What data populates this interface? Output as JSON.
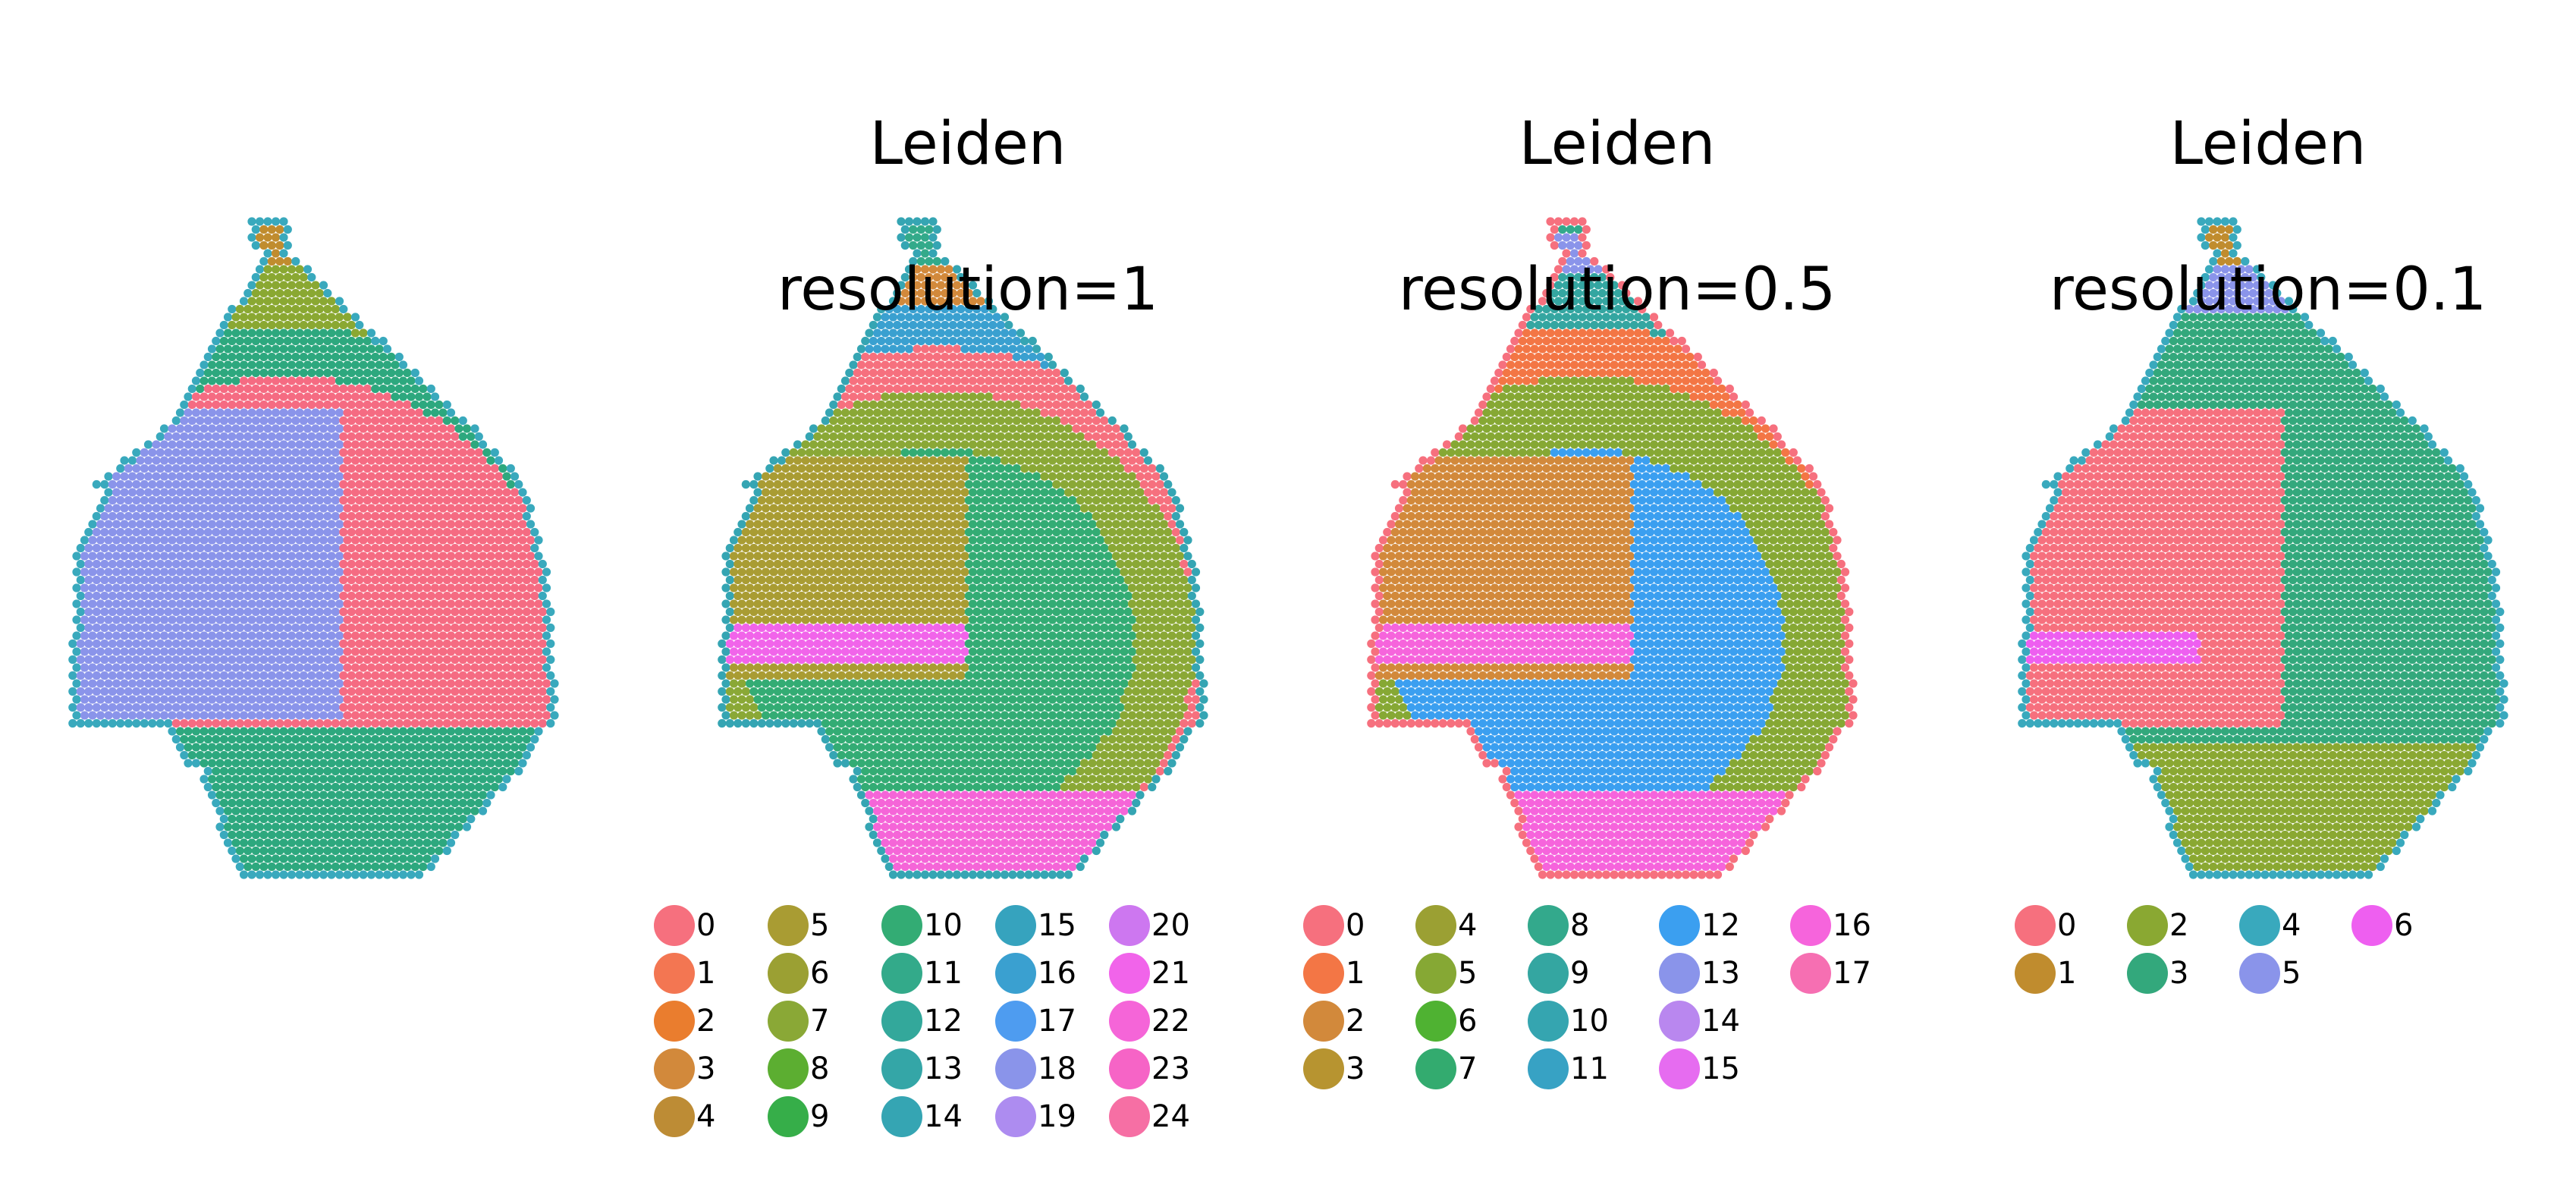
{
  "figure": {
    "panels": [
      {
        "id": "p0",
        "title_line1": "",
        "title_line2": "",
        "legend": []
      },
      {
        "id": "p1",
        "title_line1": "Leiden",
        "title_line2": "resolution=1",
        "legend": [
          "0",
          "1",
          "2",
          "3",
          "4",
          "5",
          "6",
          "7",
          "8",
          "9",
          "10",
          "11",
          "12",
          "13",
          "14",
          "15",
          "16",
          "17",
          "18",
          "19",
          "20",
          "21",
          "22",
          "23",
          "24"
        ]
      },
      {
        "id": "p2",
        "title_line1": "Leiden",
        "title_line2": "resolution=0.5",
        "legend": [
          "0",
          "1",
          "2",
          "3",
          "4",
          "5",
          "6",
          "7",
          "8",
          "9",
          "10",
          "11",
          "12",
          "13",
          "14",
          "15",
          "16",
          "17"
        ]
      },
      {
        "id": "p3",
        "title_line1": "Leiden",
        "title_line2": "resolution=0.1",
        "legend": [
          "0",
          "1",
          "2",
          "3",
          "4",
          "5",
          "6"
        ]
      }
    ]
  },
  "chart_data": [
    {
      "type": "scatter",
      "title": "",
      "subtitle": "",
      "series": [],
      "colors": {
        "background_cluster": "#8a94ea",
        "others": [
          "#c08c2e",
          "#ee5ff0",
          "#2da87e",
          "#f56b82",
          "#39a9bd",
          "#8aa832"
        ]
      }
    },
    {
      "type": "scatter",
      "title": "Leiden",
      "subtitle": "resolution=1",
      "categories": [
        "0",
        "1",
        "2",
        "3",
        "4",
        "5",
        "6",
        "7",
        "8",
        "9",
        "10",
        "11",
        "12",
        "13",
        "14",
        "15",
        "16",
        "17",
        "18",
        "19",
        "20",
        "21",
        "22",
        "23",
        "24"
      ],
      "colors": [
        "#f6707e",
        "#f37652",
        "#ea7d2e",
        "#d2893b",
        "#bd8c35",
        "#a99c33",
        "#9ba033",
        "#8aa836",
        "#5cae31",
        "#36ae49",
        "#33ac74",
        "#33aa8a",
        "#33a89b",
        "#34a6a7",
        "#35a5b3",
        "#36a3be",
        "#3aa0d0",
        "#4e9cf0",
        "#8a94ea",
        "#ad8cf0",
        "#cd77f0",
        "#f164ea",
        "#f565d8",
        "#f664c6",
        "#f66fa4"
      ]
    },
    {
      "type": "scatter",
      "title": "Leiden",
      "subtitle": "resolution=0.5",
      "categories": [
        "0",
        "1",
        "2",
        "3",
        "4",
        "5",
        "6",
        "7",
        "8",
        "9",
        "10",
        "11",
        "12",
        "13",
        "14",
        "15",
        "16",
        "17"
      ],
      "colors": [
        "#f6707e",
        "#f37645",
        "#d2893b",
        "#b79430",
        "#9ba033",
        "#86a834",
        "#4fb232",
        "#33ab6f",
        "#33a98c",
        "#34a6a1",
        "#35a5b0",
        "#37a2c4",
        "#3b9ff0",
        "#8a94ea",
        "#b987ef",
        "#e66cf0",
        "#f664dc",
        "#f66fb2"
      ]
    },
    {
      "type": "scatter",
      "title": "Leiden",
      "subtitle": "resolution=0.1",
      "categories": [
        "0",
        "1",
        "2",
        "3",
        "4",
        "5",
        "6"
      ],
      "colors": [
        "#f6707e",
        "#c08c2e",
        "#8aa832",
        "#33a87c",
        "#39a9bd",
        "#8a94ea",
        "#ee5ff0"
      ]
    }
  ]
}
